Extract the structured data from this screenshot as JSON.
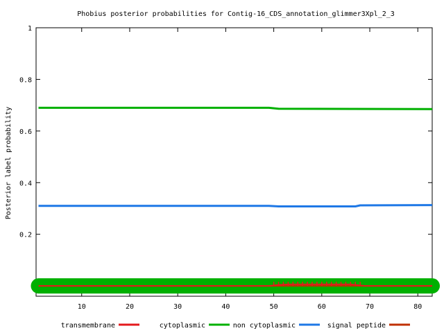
{
  "chart_data": {
    "type": "line",
    "title": "Phobius posterior probabilities for Contig-16_CDS_annotation_glimmer3Xpl_2_3",
    "xlabel": "",
    "ylabel": "Posterior label probability",
    "xlim": [
      0.5,
      83
    ],
    "ylim": [
      -0.04,
      1
    ],
    "x_ticks": [
      10,
      20,
      30,
      40,
      50,
      60,
      70,
      80
    ],
    "y_ticks": [
      0.2,
      0.4,
      0.6,
      0.8,
      1
    ],
    "y_tick_labels": [
      "0.2",
      "0.4",
      "0.6",
      "0.8",
      "1"
    ],
    "grid": false,
    "legend_position": "bottom",
    "colors": {
      "transmembrane": "#e41a1c",
      "cytoplasmic": "#00b000",
      "non_cytoplasmic": "#1e78e6",
      "signal_peptide": "#c03000"
    },
    "series": [
      {
        "name": "transmembrane",
        "color": "#e41a1c",
        "points": [
          [
            1,
            0.0
          ],
          [
            49,
            0.0
          ],
          [
            50,
            0.002
          ],
          [
            51,
            0.004
          ],
          [
            52,
            0.005
          ],
          [
            53,
            0.006
          ],
          [
            54,
            0.006
          ],
          [
            55,
            0.006
          ],
          [
            56,
            0.006
          ],
          [
            57,
            0.006
          ],
          [
            58,
            0.006
          ],
          [
            59,
            0.006
          ],
          [
            60,
            0.006
          ],
          [
            61,
            0.006
          ],
          [
            62,
            0.006
          ],
          [
            63,
            0.006
          ],
          [
            64,
            0.006
          ],
          [
            65,
            0.006
          ],
          [
            66,
            0.006
          ],
          [
            67,
            0.004
          ],
          [
            68,
            0.002
          ],
          [
            69,
            0.0
          ],
          [
            83,
            0.0
          ]
        ]
      },
      {
        "name": "cytoplasmic",
        "color": "#00b000",
        "points": [
          [
            1,
            0.0
          ],
          [
            83,
            0.0
          ]
        ]
      },
      {
        "name": "non cytoplasmic",
        "color": "#1e78e6",
        "points": [
          [
            1,
            0.31
          ],
          [
            49,
            0.31
          ],
          [
            51,
            0.308
          ],
          [
            67,
            0.308
          ],
          [
            68,
            0.312
          ],
          [
            83,
            0.313
          ]
        ]
      },
      {
        "name": "signal peptide",
        "color": "#c03000",
        "points": [
          [
            1,
            0.0
          ],
          [
            83,
            0.0
          ]
        ]
      }
    ],
    "extra_lines": [
      {
        "label": "",
        "color": "#00b000",
        "points": [
          [
            1,
            0.69
          ],
          [
            49,
            0.69
          ],
          [
            51,
            0.686
          ],
          [
            83,
            0.685
          ]
        ]
      }
    ],
    "legend": [
      {
        "label": "transmembrane",
        "color": "#e41a1c"
      },
      {
        "label": "cytoplasmic",
        "color": "#00b000"
      },
      {
        "label": "non cytoplasmic",
        "color": "#1e78e6"
      },
      {
        "label": "signal peptide",
        "color": "#c03000"
      }
    ]
  }
}
